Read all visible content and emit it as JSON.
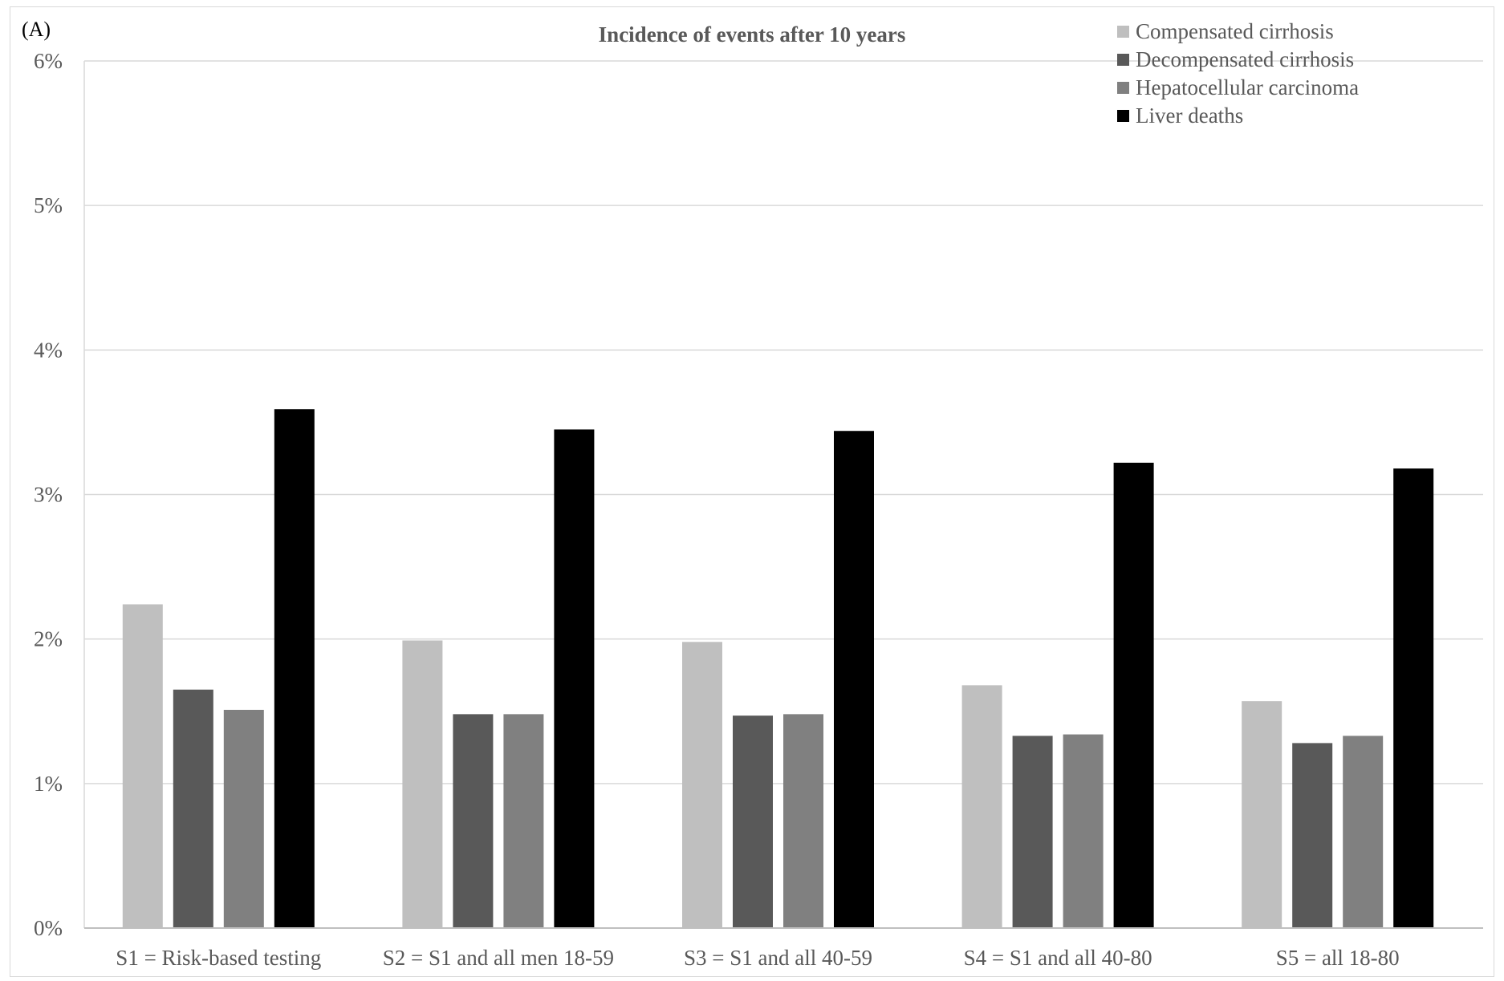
{
  "panel_label": "(A)",
  "chart_data": {
    "type": "bar",
    "title": "Incidence of events after 10 years",
    "xlabel": "",
    "ylabel": "",
    "categories": [
      "S1 = Risk-based testing",
      "S2 = S1 and all men 18-59",
      "S3 = S1 and all 40-59",
      "S4 = S1 and all 40-80",
      "S5 = all 18-80"
    ],
    "series": [
      {
        "name": "Compensated cirrhosis",
        "color": "#bfbfbf",
        "values": [
          2.24,
          1.99,
          1.98,
          1.68,
          1.57
        ]
      },
      {
        "name": "Decompensated cirrhosis",
        "color": "#595959",
        "values": [
          1.65,
          1.48,
          1.47,
          1.33,
          1.28
        ]
      },
      {
        "name": "Hepatocellular carcinoma",
        "color": "#808080",
        "values": [
          1.51,
          1.48,
          1.48,
          1.34,
          1.33
        ]
      },
      {
        "name": "Liver deaths",
        "color": "#000000",
        "values": [
          3.59,
          3.45,
          3.44,
          3.22,
          3.18
        ]
      }
    ],
    "ylim": [
      0,
      6
    ],
    "yticks": [
      0,
      1,
      2,
      3,
      4,
      5,
      6
    ],
    "ytick_labels": [
      "0%",
      "1%",
      "2%",
      "3%",
      "4%",
      "5%",
      "6%"
    ],
    "grid": true,
    "legend_position": "top-right"
  }
}
